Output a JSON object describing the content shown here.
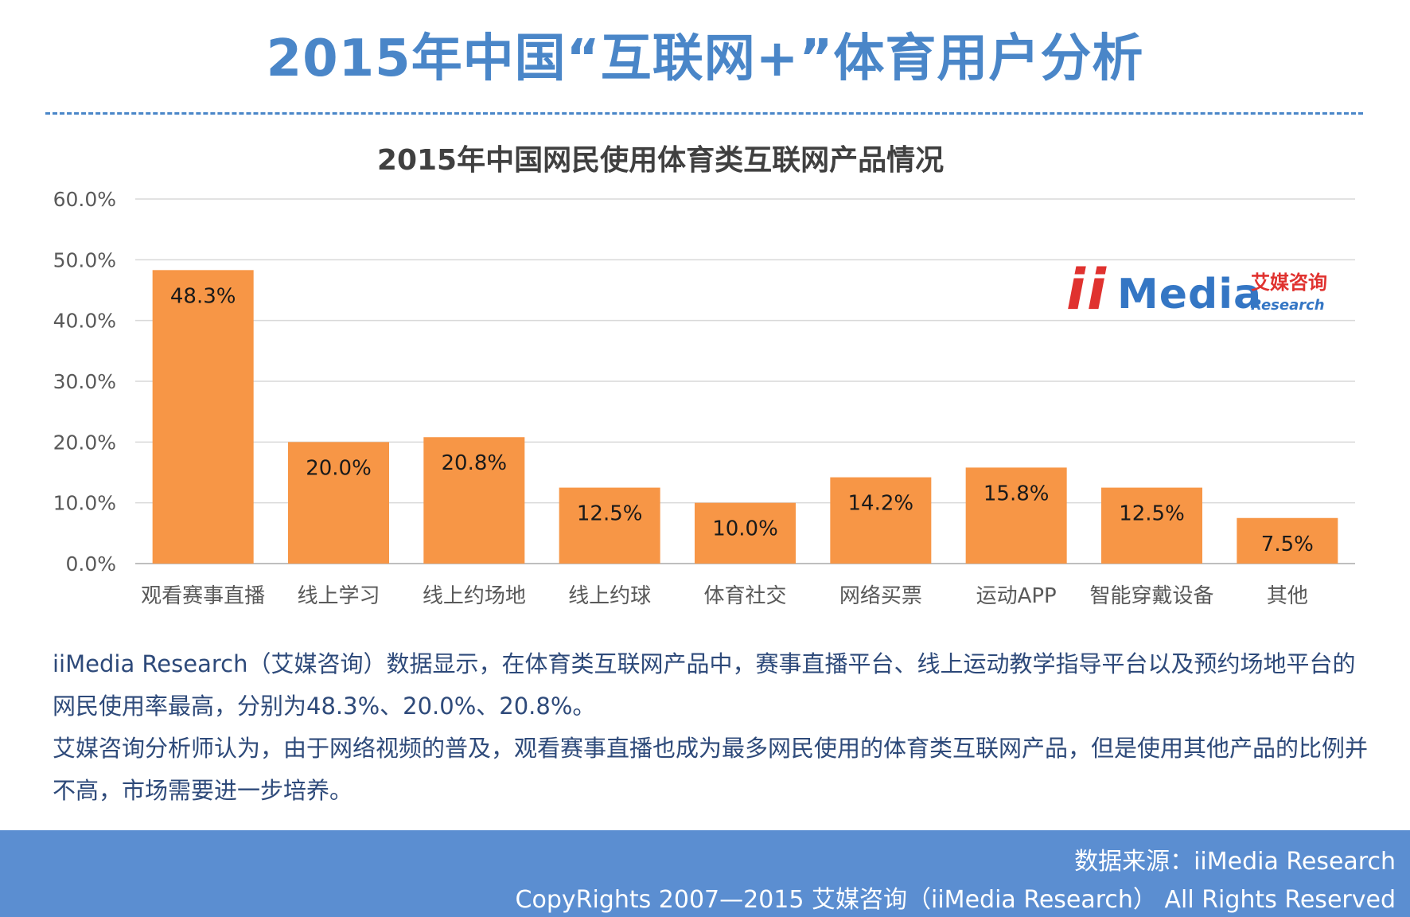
{
  "page": {
    "title": "2015年中国“互联网+”体育用户分析"
  },
  "chart_data": {
    "type": "bar",
    "title": "2015年中国网民使用体育类互联网产品情况",
    "xlabel": "",
    "ylabel": "",
    "categories": [
      "观看赛事直播",
      "线上学习",
      "线上约场地",
      "线上约球",
      "体育社交",
      "网络买票",
      "运动APP",
      "智能穿戴设备",
      "其他"
    ],
    "values": [
      48.3,
      20.0,
      20.8,
      12.5,
      10.0,
      14.2,
      15.8,
      12.5,
      7.5
    ],
    "value_labels": [
      "48.3%",
      "20.0%",
      "20.8%",
      "12.5%",
      "10.0%",
      "14.2%",
      "15.8%",
      "12.5%",
      "7.5%"
    ],
    "ylim": [
      0,
      60
    ],
    "yticks": [
      "0.0%",
      "10.0%",
      "20.0%",
      "30.0%",
      "40.0%",
      "50.0%",
      "60.0%"
    ],
    "grid": true,
    "bar_color": "#f79646",
    "grid_color": "#d9d9d9"
  },
  "logo": {
    "text_i1": "i",
    "text_i2": "i",
    "text_media": "Media",
    "text_cn": "艾媒咨询",
    "text_research": "Research"
  },
  "description": {
    "paragraph1": "iiMedia Research（艾媒咨询）数据显示，在体育类互联网产品中，赛事直播平台、线上运动教学指导平台以及预约场地平台的网民使用率最高，分别为48.3%、20.0%、20.8%。",
    "paragraph2": "艾媒咨询分析师认为，由于网络视频的普及，观看赛事直播也成为最多网民使用的体育类互联网产品，但是使用其他产品的比例并不高，市场需要进一步培养。"
  },
  "footer": {
    "source": "数据来源：iiMedia Research",
    "copyright": "CopyRights 2007—2015 艾媒咨询（iiMedia Research） All Rights Reserved"
  },
  "colors": {
    "accent": "#4a86c8",
    "footer_bg": "#5b8ed1",
    "logo_red": "#e0322f",
    "logo_blue": "#3476c4"
  }
}
